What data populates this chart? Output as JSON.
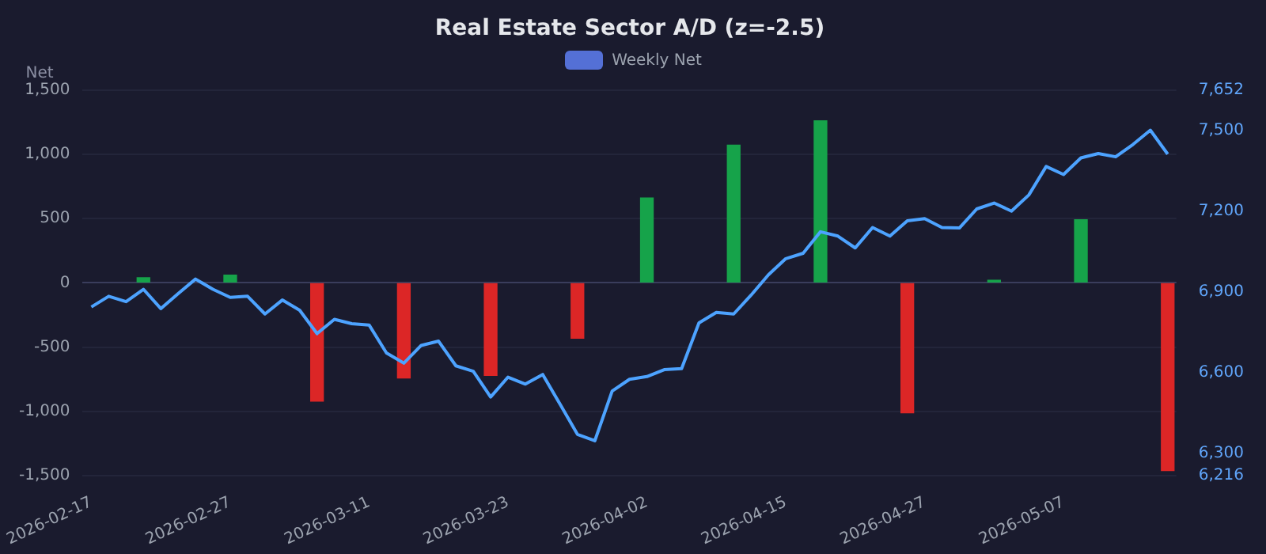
{
  "chart_data": {
    "type": "bar",
    "title": "Real Estate Sector A/D (z=-2.5)",
    "ylabel": "Net",
    "categories": [
      "2026-02-17",
      null,
      null,
      null,
      null,
      null,
      null,
      null,
      "2026-02-27",
      null,
      null,
      null,
      null,
      null,
      null,
      null,
      "2026-03-11",
      null,
      null,
      null,
      null,
      null,
      null,
      null,
      "2026-03-23",
      null,
      null,
      null,
      null,
      null,
      null,
      null,
      "2026-04-02",
      null,
      null,
      null,
      null,
      null,
      null,
      null,
      "2026-04-15",
      null,
      null,
      null,
      null,
      null,
      null,
      null,
      "2026-04-27",
      null,
      null,
      null,
      null,
      null,
      null,
      null,
      "2026-05-07",
      null,
      null,
      null,
      null,
      null,
      null
    ],
    "series": [
      {
        "name": "Weekly Net",
        "color": "#5470d6",
        "colors": [
          null,
          null,
          null,
          "#16a34a",
          null,
          null,
          null,
          null,
          "#16a34a",
          null,
          null,
          null,
          null,
          "#dc2626",
          null,
          null,
          null,
          null,
          "#dc2626",
          null,
          null,
          null,
          null,
          "#dc2626",
          null,
          null,
          null,
          null,
          "#dc2626",
          null,
          null,
          null,
          "#16a34a",
          null,
          null,
          null,
          null,
          "#16a34a",
          null,
          null,
          null,
          null,
          "#16a34a",
          null,
          null,
          null,
          null,
          "#dc2626",
          null,
          null,
          null,
          null,
          "#16a34a",
          null,
          null,
          null,
          null,
          "#16a34a",
          null,
          null,
          null,
          null,
          "#dc2626"
        ],
        "values": [
          null,
          null,
          null,
          40,
          null,
          null,
          null,
          null,
          60,
          null,
          null,
          null,
          null,
          -920,
          null,
          null,
          null,
          null,
          -740,
          null,
          null,
          null,
          null,
          -720,
          null,
          null,
          null,
          null,
          -430,
          null,
          null,
          null,
          660,
          null,
          null,
          null,
          null,
          1070,
          null,
          null,
          null,
          null,
          1260,
          null,
          null,
          null,
          null,
          -1010,
          null,
          null,
          null,
          null,
          20,
          null,
          null,
          null,
          null,
          490,
          null,
          null,
          null,
          null,
          -1460
        ]
      },
      {
        "type": "line",
        "axis": "y2",
        "color": "#4da3ff",
        "values": [
          6844,
          6884,
          6864,
          6910,
          6838,
          6894,
          6948,
          6910,
          6880,
          6884,
          6818,
          6870,
          6832,
          6745,
          6798,
          6782,
          6777,
          6673,
          6635,
          6701,
          6717,
          6625,
          6605,
          6509,
          6583,
          6557,
          6593,
          6482,
          6370,
          6346,
          6531,
          6575,
          6585,
          6611,
          6615,
          6785,
          6824,
          6818,
          6888,
          6964,
          7024,
          7044,
          7124,
          7108,
          7064,
          7140,
          7108,
          7165,
          7173,
          7140,
          7138,
          7209,
          7231,
          7201,
          7261,
          7367,
          7337,
          7399,
          7415,
          7403,
          7449,
          7502,
          7413
        ]
      }
    ],
    "ylim": [
      -1500,
      1500
    ],
    "yticks": [
      {
        "value": -1500,
        "label": "-1,500"
      },
      {
        "value": -1000,
        "label": "-1,000"
      },
      -500,
      0,
      500,
      {
        "value": 1000,
        "label": "1,000"
      },
      {
        "value": 1500,
        "label": "1,500"
      }
    ],
    "y2lim": [
      6216,
      7652
    ],
    "y2ticks": [
      {
        "value": 6216,
        "label": "6,216"
      },
      {
        "value": 6300,
        "label": "6,300"
      },
      {
        "value": 6600,
        "label": "6,600"
      },
      {
        "value": 6900,
        "label": "6,900"
      },
      {
        "value": 7200,
        "label": "7,200"
      },
      {
        "value": 7500,
        "label": "7,500"
      },
      {
        "value": 7652,
        "label": "7,652"
      }
    ],
    "grid": "y",
    "legend": "top",
    "marker": "none"
  }
}
